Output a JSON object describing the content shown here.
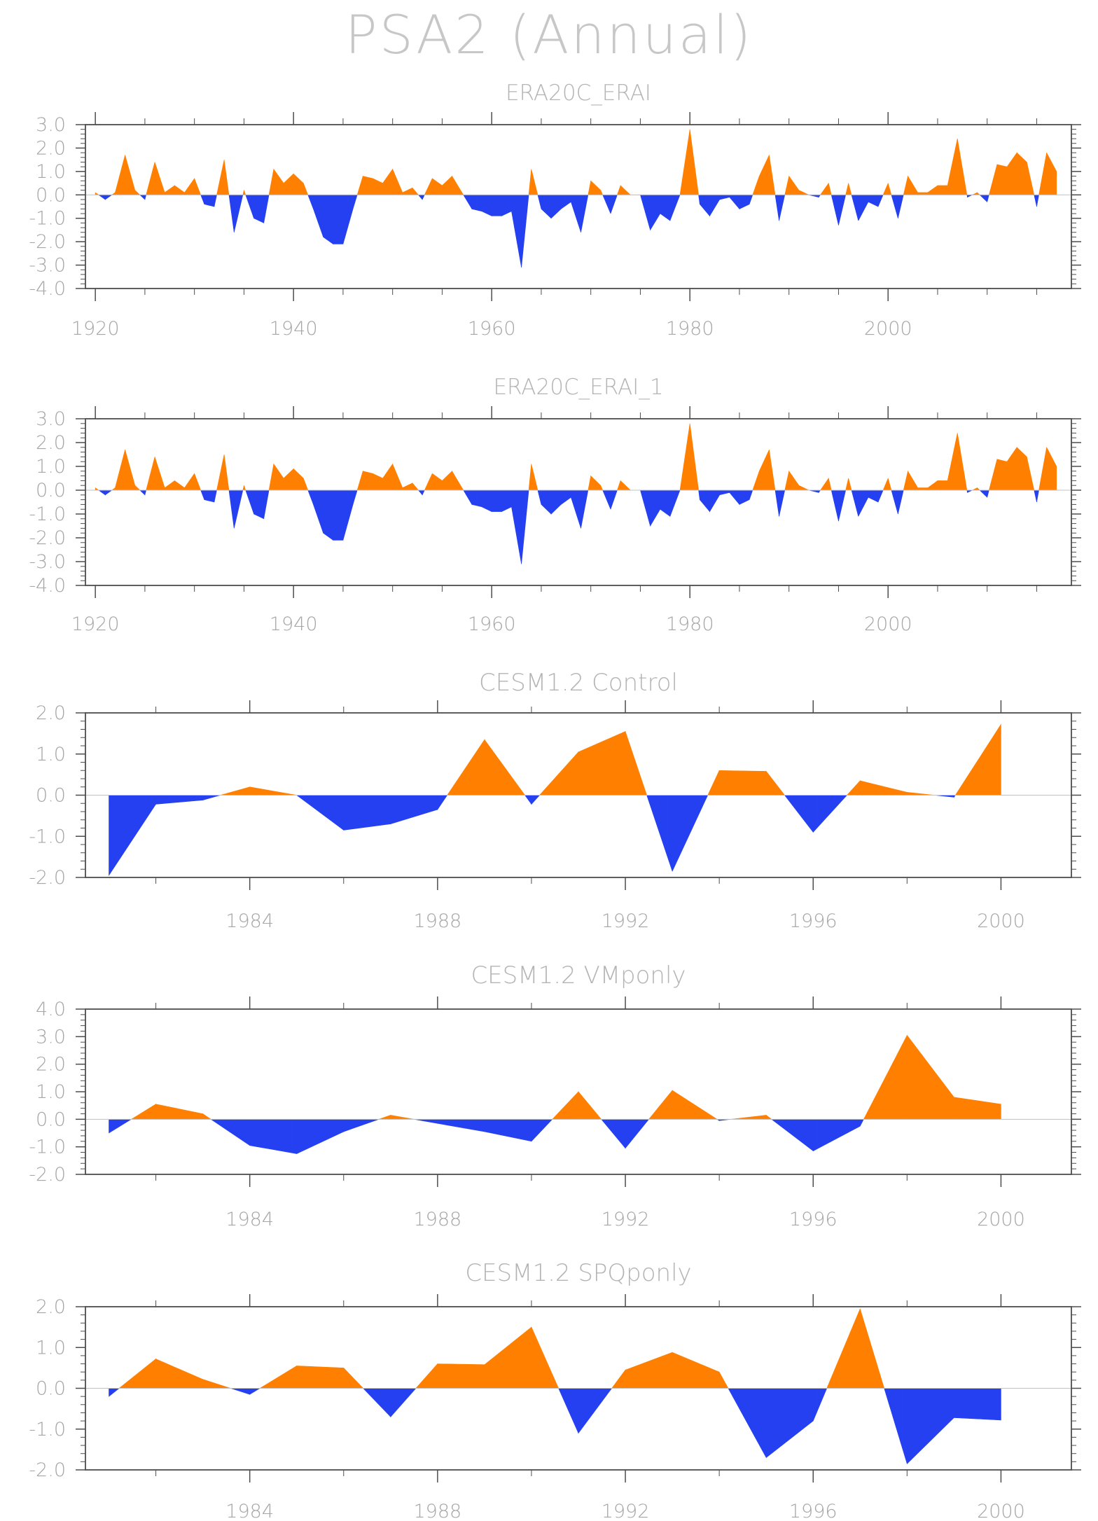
{
  "title": "PSA2 (Annual)",
  "colors": {
    "positive": "#ff8000",
    "negative": "#2440f0",
    "axis": "#4d4d4d",
    "text": "#a6a6a6",
    "zero_line": "#c0c0c0"
  },
  "chart_data": [
    {
      "type": "area",
      "title": "ERA20C_ERAI",
      "x_ticks": [
        1920,
        1940,
        1960,
        1980,
        2000
      ],
      "y_ticks": [
        "3.0",
        "2.0",
        "1.0",
        "0.0",
        "-1.0",
        "-2.0",
        "-3.0",
        "-4.0"
      ],
      "xlim": [
        1919,
        2018.5
      ],
      "ylim": [
        -4.0,
        3.0
      ],
      "x": [
        1920,
        1921,
        1922,
        1923,
        1924,
        1925,
        1926,
        1927,
        1928,
        1929,
        1930,
        1931,
        1932,
        1933,
        1934,
        1935,
        1936,
        1937,
        1938,
        1939,
        1940,
        1941,
        1942,
        1943,
        1944,
        1945,
        1946,
        1947,
        1948,
        1949,
        1950,
        1951,
        1952,
        1953,
        1954,
        1955,
        1956,
        1957,
        1958,
        1959,
        1960,
        1961,
        1962,
        1963,
        1964,
        1965,
        1966,
        1967,
        1968,
        1969,
        1970,
        1971,
        1972,
        1973,
        1974,
        1975,
        1976,
        1977,
        1978,
        1979,
        1980,
        1981,
        1982,
        1983,
        1984,
        1985,
        1986,
        1987,
        1988,
        1989,
        1990,
        1991,
        1992,
        1993,
        1994,
        1995,
        1996,
        1997,
        1998,
        1999,
        2000,
        2001,
        2002,
        2003,
        2004,
        2005,
        2006,
        2007,
        2008,
        2009,
        2010,
        2011,
        2012,
        2013,
        2014,
        2015,
        2016,
        2017
      ],
      "values": [
        0.1,
        -0.2,
        0.1,
        1.7,
        0.2,
        -0.2,
        1.4,
        0.1,
        0.4,
        0.1,
        0.7,
        -0.4,
        -0.5,
        1.5,
        -1.6,
        0.2,
        -1.0,
        -1.2,
        1.1,
        0.5,
        0.9,
        0.5,
        -0.6,
        -1.8,
        -2.1,
        -2.1,
        -0.6,
        0.8,
        0.7,
        0.5,
        1.1,
        0.1,
        0.3,
        -0.2,
        0.7,
        0.4,
        0.8,
        0.1,
        -0.6,
        -0.7,
        -0.9,
        -0.9,
        -0.7,
        -3.1,
        1.1,
        -0.6,
        -1.0,
        -0.6,
        -0.3,
        -1.6,
        0.6,
        0.2,
        -0.8,
        0.4,
        0.0,
        0.0,
        -1.5,
        -0.8,
        -1.1,
        0.0,
        2.8,
        -0.4,
        -0.9,
        -0.2,
        -0.1,
        -0.6,
        -0.4,
        0.8,
        1.7,
        -1.1,
        0.8,
        0.2,
        0.0,
        -0.1,
        0.5,
        -1.3,
        0.5,
        -1.1,
        -0.3,
        -0.5,
        0.5,
        -1.0,
        0.8,
        0.1,
        0.1,
        0.4,
        0.4,
        2.4,
        -0.1,
        0.1,
        -0.3,
        1.3,
        1.2,
        1.8,
        1.4,
        -0.5,
        1.8,
        1.0
      ]
    },
    {
      "type": "area",
      "title": "ERA20C_ERAI_1",
      "x_ticks": [
        1920,
        1940,
        1960,
        1980,
        2000
      ],
      "y_ticks": [
        "3.0",
        "2.0",
        "1.0",
        "0.0",
        "-1.0",
        "-2.0",
        "-3.0",
        "-4.0"
      ],
      "xlim": [
        1919,
        2018.5
      ],
      "ylim": [
        -4.0,
        3.0
      ],
      "x": [
        1920,
        1921,
        1922,
        1923,
        1924,
        1925,
        1926,
        1927,
        1928,
        1929,
        1930,
        1931,
        1932,
        1933,
        1934,
        1935,
        1936,
        1937,
        1938,
        1939,
        1940,
        1941,
        1942,
        1943,
        1944,
        1945,
        1946,
        1947,
        1948,
        1949,
        1950,
        1951,
        1952,
        1953,
        1954,
        1955,
        1956,
        1957,
        1958,
        1959,
        1960,
        1961,
        1962,
        1963,
        1964,
        1965,
        1966,
        1967,
        1968,
        1969,
        1970,
        1971,
        1972,
        1973,
        1974,
        1975,
        1976,
        1977,
        1978,
        1979,
        1980,
        1981,
        1982,
        1983,
        1984,
        1985,
        1986,
        1987,
        1988,
        1989,
        1990,
        1991,
        1992,
        1993,
        1994,
        1995,
        1996,
        1997,
        1998,
        1999,
        2000,
        2001,
        2002,
        2003,
        2004,
        2005,
        2006,
        2007,
        2008,
        2009,
        2010,
        2011,
        2012,
        2013,
        2014,
        2015,
        2016,
        2017
      ],
      "values": [
        0.1,
        -0.2,
        0.1,
        1.7,
        0.2,
        -0.2,
        1.4,
        0.1,
        0.4,
        0.1,
        0.7,
        -0.4,
        -0.5,
        1.5,
        -1.6,
        0.2,
        -1.0,
        -1.2,
        1.1,
        0.5,
        0.9,
        0.5,
        -0.6,
        -1.8,
        -2.1,
        -2.1,
        -0.6,
        0.8,
        0.7,
        0.5,
        1.1,
        0.1,
        0.3,
        -0.2,
        0.7,
        0.4,
        0.8,
        0.1,
        -0.6,
        -0.7,
        -0.9,
        -0.9,
        -0.7,
        -3.1,
        1.1,
        -0.6,
        -1.0,
        -0.6,
        -0.3,
        -1.6,
        0.6,
        0.2,
        -0.8,
        0.4,
        0.0,
        0.0,
        -1.5,
        -0.8,
        -1.1,
        0.0,
        2.8,
        -0.4,
        -0.9,
        -0.2,
        -0.1,
        -0.6,
        -0.4,
        0.8,
        1.7,
        -1.1,
        0.8,
        0.2,
        0.0,
        -0.1,
        0.5,
        -1.3,
        0.5,
        -1.1,
        -0.3,
        -0.5,
        0.5,
        -1.0,
        0.8,
        0.1,
        0.1,
        0.4,
        0.4,
        2.4,
        -0.1,
        0.1,
        -0.3,
        1.3,
        1.2,
        1.8,
        1.4,
        -0.5,
        1.8,
        1.0
      ]
    },
    {
      "type": "area",
      "title": "CESM1.2 Control",
      "x_ticks": [
        1984,
        1988,
        1992,
        1996,
        2000
      ],
      "y_ticks": [
        "2.0",
        "1.0",
        "0.0",
        "-1.0",
        "-2.0"
      ],
      "xlim": [
        1980.5,
        2001.5
      ],
      "ylim": [
        -2.0,
        2.0
      ],
      "x": [
        1981,
        1982,
        1983,
        1984,
        1985,
        1986,
        1987,
        1988,
        1989,
        1990,
        1991,
        1992,
        1993,
        1994,
        1995,
        1996,
        1997,
        1998,
        1999,
        2000
      ],
      "values": [
        -1.95,
        -0.22,
        -0.12,
        0.2,
        0.0,
        -0.85,
        -0.7,
        -0.35,
        1.35,
        -0.22,
        1.05,
        1.55,
        -1.85,
        0.6,
        0.58,
        -0.9,
        0.35,
        0.07,
        -0.05,
        1.72
      ]
    },
    {
      "type": "area",
      "title": "CESM1.2 VMponly",
      "x_ticks": [
        1984,
        1988,
        1992,
        1996,
        2000
      ],
      "y_ticks": [
        "4.0",
        "3.0",
        "2.0",
        "1.0",
        "0.0",
        "-1.0",
        "-2.0"
      ],
      "xlim": [
        1980.5,
        2001.5
      ],
      "ylim": [
        -2.0,
        4.0
      ],
      "x": [
        1981,
        1982,
        1983,
        1984,
        1985,
        1986,
        1987,
        1988,
        1989,
        1990,
        1991,
        1992,
        1993,
        1994,
        1995,
        1996,
        1997,
        1998,
        1999,
        2000
      ],
      "values": [
        -0.5,
        0.55,
        0.2,
        -0.95,
        -1.25,
        -0.45,
        0.15,
        -0.15,
        -0.45,
        -0.8,
        1.0,
        -1.05,
        1.05,
        -0.05,
        0.15,
        -1.15,
        -0.25,
        3.05,
        0.8,
        0.55
      ]
    },
    {
      "type": "area",
      "title": "CESM1.2 SPQponly",
      "x_ticks": [
        1984,
        1988,
        1992,
        1996,
        2000
      ],
      "y_ticks": [
        "2.0",
        "1.0",
        "0.0",
        "-1.0",
        "-2.0"
      ],
      "xlim": [
        1980.5,
        2001.5
      ],
      "ylim": [
        -2.0,
        2.0
      ],
      "x": [
        1981,
        1982,
        1983,
        1984,
        1985,
        1986,
        1987,
        1988,
        1989,
        1990,
        1991,
        1992,
        1993,
        1994,
        1995,
        1996,
        1997,
        1998,
        1999,
        2000
      ],
      "values": [
        -0.2,
        0.72,
        0.22,
        -0.15,
        0.55,
        0.5,
        -0.7,
        0.6,
        0.58,
        1.5,
        -1.1,
        0.45,
        0.88,
        0.4,
        -1.7,
        -0.8,
        1.95,
        -1.85,
        -0.72,
        -0.78
      ]
    }
  ]
}
